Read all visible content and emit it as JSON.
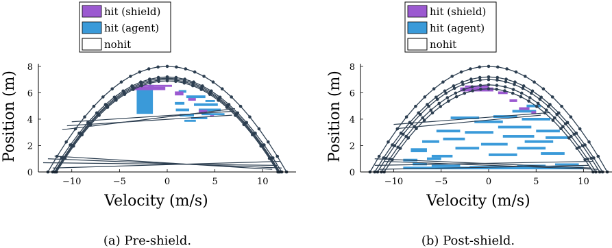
{
  "colors": {
    "hit_shield": "#9b59d0",
    "hit_agent": "#3a9ad9",
    "trajectory": "#2c3e50"
  },
  "chart_data": [
    {
      "type": "scatter",
      "caption": "(a) Pre-shield.",
      "xlabel": "Velocity (m/s)",
      "ylabel": "Position (m)",
      "xlim": [
        -13.5,
        13.5
      ],
      "ylim": [
        0,
        8.2
      ],
      "xticks": [
        -10,
        -5,
        0,
        5,
        10
      ],
      "xtick_labels": [
        "−10",
        "−5",
        "0",
        "5",
        "10"
      ],
      "yticks": [
        0,
        2,
        4,
        6,
        8
      ],
      "ytick_labels": [
        "0",
        "2",
        "4",
        "6",
        "8"
      ],
      "legend": {
        "placement": "top",
        "entries": [
          {
            "label": "hit (shield)",
            "key": "hit_shield"
          },
          {
            "label": "hit (agent)",
            "key": "hit_agent"
          },
          {
            "label": "nohit",
            "key": "nohit"
          }
        ]
      },
      "trajectories": [
        {
          "peak": 7.2,
          "v0": 12.0,
          "start_v": 12.0,
          "start_p": 0.0
        },
        {
          "peak": 7.0,
          "v0": 11.7,
          "start_v": 11.5,
          "start_p": 0.2
        },
        {
          "peak": 8.0,
          "v0": 12.5,
          "start_v": -12.0,
          "start_p": 0.3
        },
        {
          "peak": 7.1,
          "v0": 11.8,
          "start_v": -13.0,
          "start_p": 0.6
        },
        {
          "peak": 6.9,
          "v0": 11.6,
          "start_v": -12.5,
          "start_p": 0.8
        }
      ],
      "bounce_lines": [
        [
          [
            -13.0,
            0.7
          ],
          [
            11.5,
            0.5
          ]
        ],
        [
          [
            -12.5,
            1.0
          ],
          [
            12.0,
            0.3
          ]
        ],
        [
          [
            -12.0,
            0.3
          ],
          [
            11.8,
            0.8
          ]
        ],
        [
          [
            -11.8,
            1.2
          ],
          [
            11.0,
            0.2
          ]
        ],
        [
          [
            -10.0,
            3.8
          ],
          [
            7.0,
            4.6
          ]
        ],
        [
          [
            -10.5,
            3.5
          ],
          [
            6.8,
            4.3
          ]
        ],
        [
          [
            -11.0,
            3.2
          ],
          [
            7.1,
            4.8
          ]
        ]
      ],
      "hit_agent_regions": [
        [
          -3.2,
          4.4,
          -1.5,
          6.2
        ],
        [
          -2.0,
          6.2,
          -1.4,
          6.6
        ],
        [
          0.8,
          5.1,
          1.8,
          5.3
        ],
        [
          0.9,
          4.6,
          2.3,
          4.8
        ],
        [
          1.3,
          4.2,
          2.8,
          4.4
        ],
        [
          2.0,
          5.6,
          4.0,
          5.8
        ],
        [
          2.8,
          5.0,
          5.3,
          5.2
        ],
        [
          3.3,
          4.6,
          5.6,
          4.8
        ],
        [
          3.6,
          4.3,
          6.0,
          4.45
        ],
        [
          4.0,
          5.3,
          5.0,
          5.45
        ],
        [
          2.5,
          4.0,
          4.2,
          4.15
        ],
        [
          1.2,
          6.0,
          2.0,
          6.2
        ],
        [
          1.8,
          3.8,
          3.0,
          3.95
        ]
      ],
      "hit_shield_regions": [
        [
          -3.5,
          6.2,
          -0.2,
          6.45
        ],
        [
          -3.0,
          6.45,
          0.5,
          6.6
        ],
        [
          0.8,
          5.8,
          1.7,
          6.1
        ],
        [
          2.2,
          5.4,
          3.0,
          5.6
        ],
        [
          3.3,
          4.5,
          4.2,
          4.7
        ],
        [
          4.5,
          4.2,
          4.9,
          4.3
        ]
      ]
    },
    {
      "type": "scatter",
      "caption": "(b) Post-shield.",
      "xlabel": "Velocity (m/s)",
      "ylabel": "Position (m)",
      "xlim": [
        -13.5,
        13.5
      ],
      "ylim": [
        0,
        8.2
      ],
      "xticks": [
        -10,
        -5,
        0,
        5,
        10
      ],
      "xtick_labels": [
        "−10",
        "−5",
        "0",
        "5",
        "10"
      ],
      "yticks": [
        0,
        2,
        4,
        6,
        8
      ],
      "ytick_labels": [
        "0",
        "2",
        "4",
        "6",
        "8"
      ],
      "legend": {
        "placement": "top",
        "entries": [
          {
            "label": "hit (shield)",
            "key": "hit_shield"
          },
          {
            "label": "hit (agent)",
            "key": "hit_agent"
          },
          {
            "label": "nohit",
            "key": "nohit"
          }
        ]
      },
      "trajectories": [
        {
          "peak": 8.0,
          "v0": 12.5,
          "start_v": -12.0,
          "start_p": 0.3
        },
        {
          "peak": 7.2,
          "v0": 12.0,
          "start_v": -12.0,
          "start_p": 0.5
        },
        {
          "peak": 7.0,
          "v0": 11.7,
          "start_v": -11.5,
          "start_p": 0.8
        },
        {
          "peak": 6.6,
          "v0": 11.3,
          "start_v": -10.8,
          "start_p": 1.2
        },
        {
          "peak": 6.3,
          "v0": 11.0,
          "start_v": -10.5,
          "start_p": 0.2
        }
      ],
      "bounce_lines": [
        [
          [
            -12.0,
            0.5
          ],
          [
            11.0,
            0.8
          ]
        ],
        [
          [
            -11.5,
            0.2
          ],
          [
            10.5,
            0.5
          ]
        ],
        [
          [
            -12.0,
            1.0
          ],
          [
            10.8,
            0.3
          ]
        ],
        [
          [
            -10.0,
            3.6
          ],
          [
            6.5,
            4.5
          ]
        ],
        [
          [
            -9.5,
            3.3
          ],
          [
            5.5,
            4.3
          ]
        ],
        [
          [
            -11.0,
            0.8
          ],
          [
            11.5,
            0.2
          ]
        ]
      ],
      "hit_agent_regions": [
        [
          -9.0,
          0.2,
          10.0,
          0.4
        ],
        [
          -8.0,
          0.5,
          -6.5,
          0.7
        ],
        [
          -6.0,
          0.4,
          -3.0,
          0.55
        ],
        [
          -2.0,
          0.3,
          2.0,
          0.45
        ],
        [
          3.0,
          0.4,
          6.0,
          0.55
        ],
        [
          7.0,
          0.5,
          9.5,
          0.65
        ],
        [
          -8.2,
          1.5,
          -6.5,
          1.8
        ],
        [
          -7.0,
          2.2,
          -5.2,
          2.4
        ],
        [
          -6.0,
          1.1,
          -3.8,
          1.3
        ],
        [
          -5.5,
          3.0,
          -3.0,
          3.2
        ],
        [
          -4.8,
          2.4,
          -2.5,
          2.6
        ],
        [
          -3.5,
          1.7,
          -1.0,
          1.9
        ],
        [
          -2.5,
          2.9,
          0.5,
          3.1
        ],
        [
          -1.5,
          3.7,
          1.5,
          3.9
        ],
        [
          -0.8,
          2.0,
          2.0,
          2.2
        ],
        [
          0.0,
          1.2,
          3.0,
          1.4
        ],
        [
          0.5,
          4.1,
          3.0,
          4.3
        ],
        [
          1.0,
          3.3,
          4.5,
          3.5
        ],
        [
          1.5,
          2.6,
          4.8,
          2.8
        ],
        [
          2.5,
          4.5,
          5.0,
          4.7
        ],
        [
          3.0,
          1.7,
          6.0,
          1.9
        ],
        [
          3.5,
          3.9,
          6.5,
          4.1
        ],
        [
          3.8,
          2.2,
          6.8,
          2.4
        ],
        [
          4.0,
          4.9,
          5.5,
          5.1
        ],
        [
          5.0,
          3.0,
          7.5,
          3.2
        ],
        [
          5.5,
          1.3,
          8.0,
          1.5
        ],
        [
          6.0,
          2.5,
          8.5,
          2.7
        ],
        [
          -6.5,
          0.9,
          -5.0,
          1.1
        ],
        [
          -4.0,
          4.0,
          -1.0,
          4.2
        ],
        [
          -9.0,
          0.8,
          -7.5,
          1.0
        ]
      ],
      "hit_shield_regions": [
        [
          -3.0,
          6.1,
          0.5,
          6.4
        ],
        [
          -2.5,
          6.4,
          0.0,
          6.55
        ],
        [
          1.0,
          5.9,
          2.0,
          6.1
        ],
        [
          2.2,
          5.3,
          3.0,
          5.5
        ],
        [
          3.2,
          4.7,
          4.3,
          4.9
        ],
        [
          4.5,
          4.4,
          5.0,
          4.6
        ]
      ]
    }
  ]
}
